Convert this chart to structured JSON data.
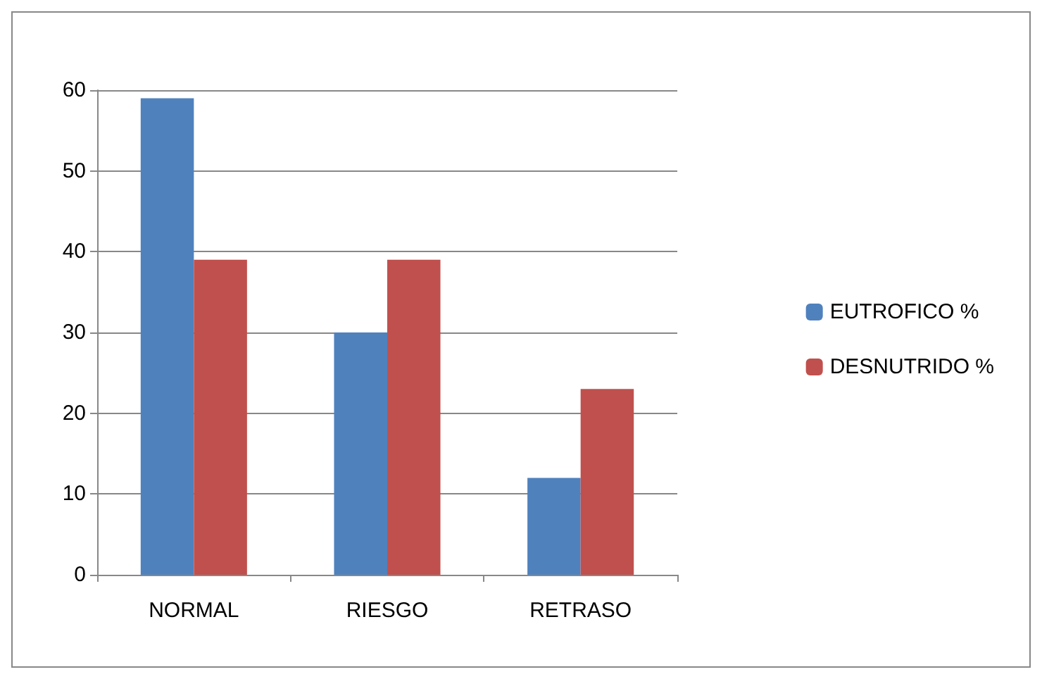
{
  "chart_data": {
    "type": "bar",
    "categories": [
      "NORMAL",
      "RIESGO",
      "RETRASO"
    ],
    "series": [
      {
        "name": "EUTROFICO %",
        "color": "#4f81bd",
        "values": [
          59,
          30,
          12
        ]
      },
      {
        "name": "DESNUTRIDO %",
        "color": "#c0504d",
        "values": [
          39,
          39,
          23
        ]
      }
    ],
    "ylim": [
      0,
      60
    ],
    "yticks": [
      0,
      10,
      20,
      30,
      40,
      50,
      60
    ],
    "grid": "y",
    "legend": "right"
  }
}
